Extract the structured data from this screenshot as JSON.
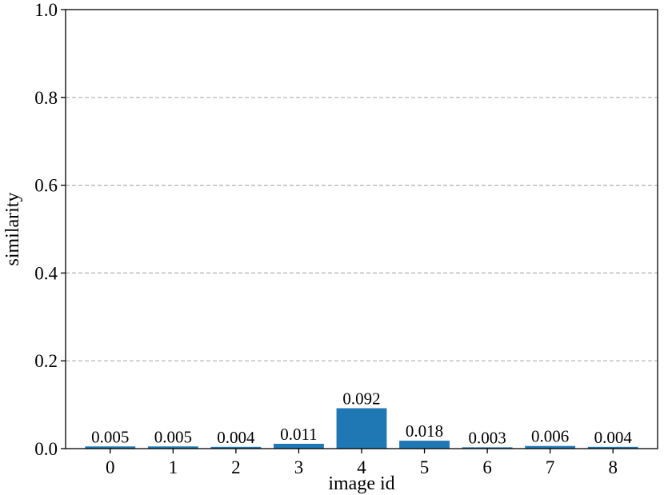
{
  "chart_data": {
    "type": "bar",
    "title": "",
    "xlabel": "image id",
    "ylabel": "similarity",
    "categories": [
      "0",
      "1",
      "2",
      "3",
      "4",
      "5",
      "6",
      "7",
      "8"
    ],
    "values": [
      0.005,
      0.005,
      0.004,
      0.011,
      0.092,
      0.018,
      0.003,
      0.006,
      0.004
    ],
    "value_labels": [
      "0.005",
      "0.005",
      "0.004",
      "0.011",
      "0.092",
      "0.018",
      "0.003",
      "0.006",
      "0.004"
    ],
    "ylim": [
      0,
      1.0
    ],
    "yticks": [
      0.0,
      0.2,
      0.4,
      0.6,
      0.8,
      1.0
    ],
    "ytick_labels": [
      "0.0",
      "0.2",
      "0.4",
      "0.6",
      "0.8",
      "1.0"
    ],
    "grid": "y-dashed",
    "bar_color": "#1f77b4"
  }
}
